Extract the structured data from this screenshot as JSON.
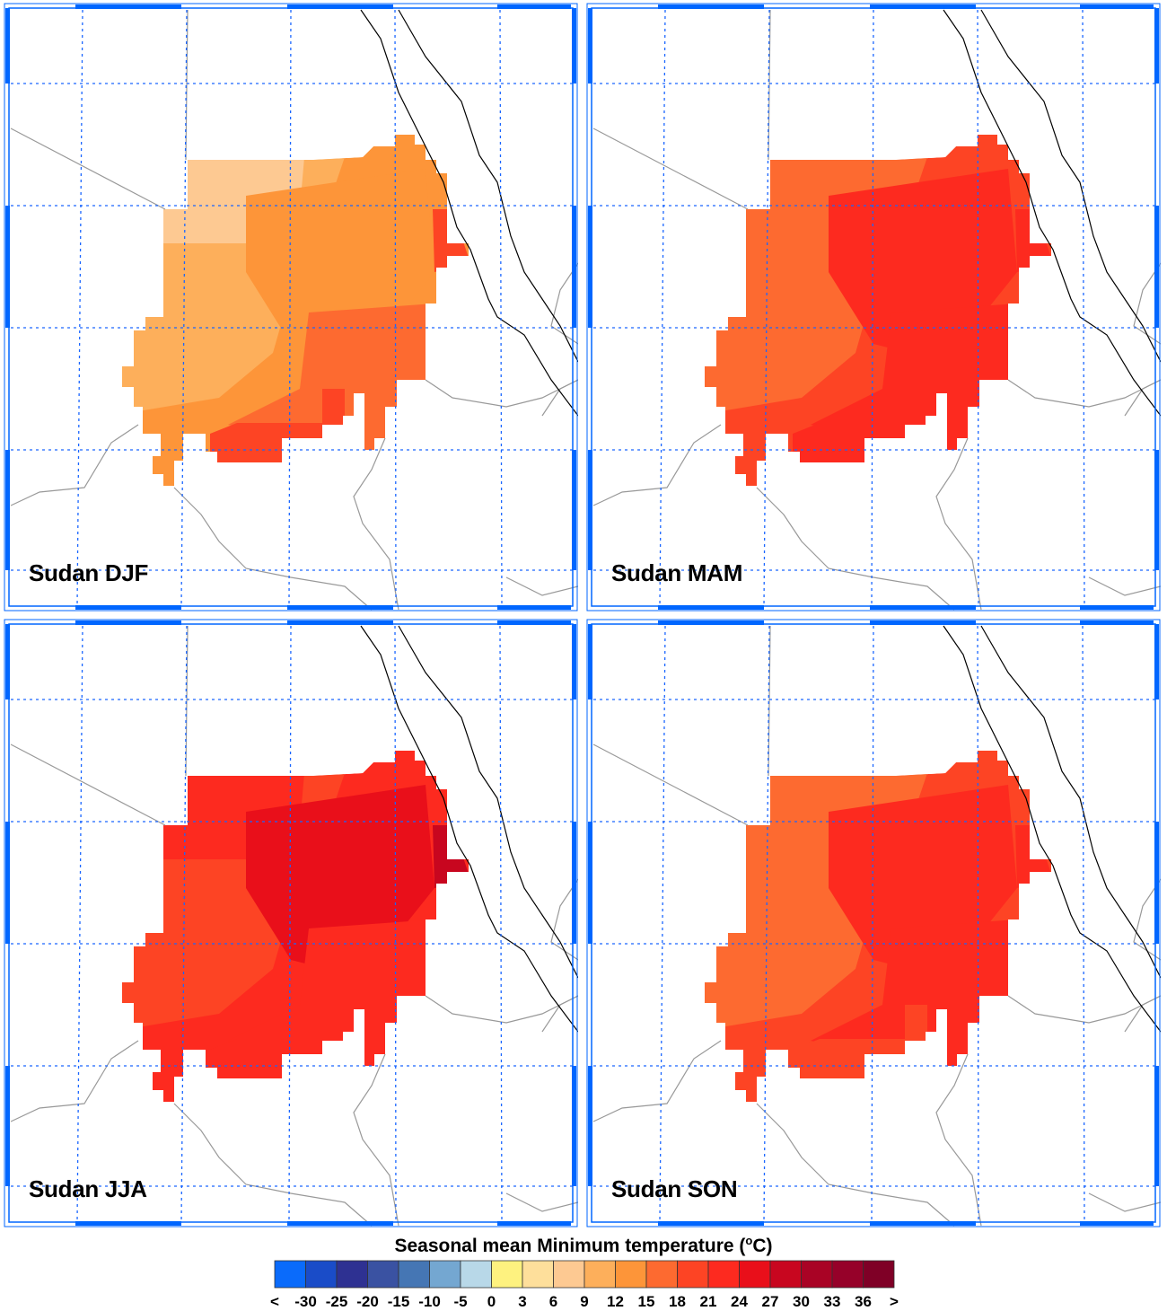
{
  "panels": [
    {
      "title": "Sudan DJF",
      "zone_colors": {
        "base": "#FD9539",
        "west": "#FDAF5B",
        "northwest": "#FDC992",
        "center": "#FD9539",
        "southeast": "#FD6A30",
        "south": "#FD4424",
        "coast": "#FD4424"
      }
    },
    {
      "title": "Sudan MAM",
      "zone_colors": {
        "base": "#FD4424",
        "west": "#FD6A30",
        "northwest": "#FD6A30",
        "center": "#FD2A1F",
        "southeast": "#FD2A1F",
        "south": "#FD2A1F",
        "coast": "#FD2A1F"
      }
    },
    {
      "title": "Sudan JJA",
      "zone_colors": {
        "base": "#FD2A1F",
        "west": "#FD4424",
        "northwest": "#FD2A1F",
        "center": "#E90F1A",
        "southeast": "#FD2A1F",
        "south": "#FD2A1F",
        "coast": "#C8061F"
      }
    },
    {
      "title": "Sudan SON",
      "zone_colors": {
        "base": "#FD4424",
        "west": "#FD6A30",
        "northwest": "#FD6A30",
        "center": "#FD2A1F",
        "southeast": "#FD2A1F",
        "south": "#FD4424",
        "coast": "#FD2A1F"
      }
    }
  ],
  "colorbar": {
    "title": "Seasonal mean Minimum temperature (",
    "unit_sup": "o",
    "unit_tail": "C)",
    "labels": [
      "<",
      "-30",
      "-25",
      "-20",
      "-15",
      "-10",
      "-5",
      "0",
      "3",
      "6",
      "9",
      "12",
      "15",
      "18",
      "21",
      "24",
      "27",
      "30",
      "33",
      "36",
      ">"
    ],
    "colors": [
      "#0A6BFB",
      "#1A4CC8",
      "#2E3192",
      "#3A52A2",
      "#4576B4",
      "#74A7D1",
      "#B8D8E8",
      "#FEF27F",
      "#FEDF9B",
      "#FDC992",
      "#FDAF5B",
      "#FD9539",
      "#FD6A30",
      "#FD4424",
      "#FD2A1F",
      "#E90F1A",
      "#C8061F",
      "#A90325",
      "#960129",
      "#7F0026"
    ]
  },
  "map_colors": {
    "frame": "#0066FF",
    "grid": "#1A66FF",
    "coastline": "#000000",
    "border": "#999999"
  }
}
